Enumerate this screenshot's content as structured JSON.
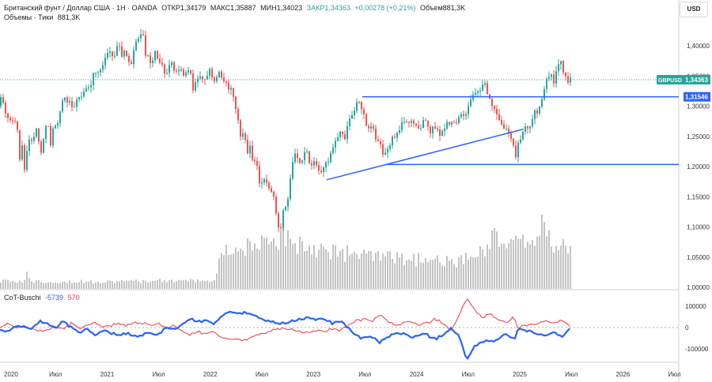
{
  "header": {
    "symbol_line": [
      "Британский фунт / Доллар США · 1Н · OANDA",
      "ОТКР1,34179",
      "МАКС1,35887",
      "МИН1,34023",
      "ЗАКР1,34363",
      "+0,00278 (+0,21%)",
      "Объем881,3K"
    ],
    "volume_line": [
      "Объемы · Тики",
      "881,3K"
    ],
    "currency_button": "USD"
  },
  "indicator": {
    "title": "CoT-Buschi",
    "values": [
      "-5739",
      "570"
    ]
  },
  "price_badges": {
    "current": "1,34363",
    "current_label": "GBPUSD",
    "level": "1,31546"
  },
  "colors": {
    "up": "#26a69a",
    "down": "#ef5350",
    "volume": "#c3c3c3",
    "lines": "#2962ff",
    "cot_red": "#f23645",
    "cot_blue": "#2962ff"
  },
  "chart_data": {
    "type": "candlestick",
    "price_axis": {
      "min": 1.0,
      "max": 1.43,
      "ticks": [
        "1,40000",
        "1,35000",
        "1,30000",
        "1,25000",
        "1,20000",
        "1,15000",
        "1,10000",
        "1,05000",
        "1,00000"
      ]
    },
    "cot_axis": {
      "ticks": [
        "100000",
        "0",
        "-100000"
      ]
    },
    "time_axis": [
      "2020",
      "Июл",
      "2021",
      "Июл",
      "2022",
      "Июл",
      "2023",
      "Июл",
      "2024",
      "Июл",
      "2025",
      "Июл",
      "2026",
      "Июл"
    ],
    "price_path": [
      [
        0,
        1.3
      ],
      [
        3,
        1.32
      ],
      [
        7,
        1.3
      ],
      [
        10,
        1.28
      ],
      [
        14,
        1.28
      ],
      [
        17,
        1.28
      ],
      [
        20,
        1.27
      ],
      [
        23,
        1.28
      ],
      [
        26,
        1.22
      ],
      [
        28,
        1.21
      ],
      [
        30,
        1.24
      ],
      [
        31,
        1.15
      ],
      [
        33,
        1.19
      ],
      [
        35,
        1.22
      ],
      [
        38,
        1.24
      ],
      [
        42,
        1.24
      ],
      [
        45,
        1.25
      ],
      [
        48,
        1.26
      ],
      [
        52,
        1.24
      ],
      [
        55,
        1.22
      ],
      [
        58,
        1.26
      ],
      [
        62,
        1.28
      ],
      [
        66,
        1.24
      ],
      [
        70,
        1.27
      ],
      [
        74,
        1.27
      ],
      [
        78,
        1.29
      ],
      [
        82,
        1.32
      ],
      [
        86,
        1.31
      ],
      [
        90,
        1.31
      ],
      [
        94,
        1.29
      ],
      [
        97,
        1.3
      ],
      [
        100,
        1.31
      ],
      [
        104,
        1.32
      ],
      [
        108,
        1.32
      ],
      [
        112,
        1.33
      ],
      [
        116,
        1.33
      ],
      [
        120,
        1.35
      ],
      [
        124,
        1.36
      ],
      [
        128,
        1.36
      ],
      [
        132,
        1.37
      ],
      [
        136,
        1.38
      ],
      [
        140,
        1.39
      ],
      [
        144,
        1.38
      ],
      [
        148,
        1.39
      ],
      [
        152,
        1.4
      ],
      [
        156,
        1.38
      ],
      [
        160,
        1.39
      ],
      [
        164,
        1.38
      ],
      [
        168,
        1.37
      ],
      [
        172,
        1.4
      ],
      [
        176,
        1.41
      ],
      [
        180,
        1.42
      ],
      [
        184,
        1.41
      ],
      [
        186,
        1.38
      ],
      [
        190,
        1.38
      ],
      [
        194,
        1.37
      ],
      [
        198,
        1.39
      ],
      [
        202,
        1.38
      ],
      [
        206,
        1.37
      ],
      [
        210,
        1.35
      ],
      [
        214,
        1.36
      ],
      [
        218,
        1.37
      ],
      [
        222,
        1.36
      ],
      [
        226,
        1.36
      ],
      [
        230,
        1.36
      ],
      [
        234,
        1.35
      ],
      [
        238,
        1.36
      ],
      [
        242,
        1.36
      ],
      [
        246,
        1.33
      ],
      [
        250,
        1.34
      ],
      [
        254,
        1.35
      ],
      [
        258,
        1.34
      ],
      [
        262,
        1.35
      ],
      [
        266,
        1.36
      ],
      [
        270,
        1.35
      ],
      [
        274,
        1.34
      ],
      [
        278,
        1.36
      ],
      [
        282,
        1.35
      ],
      [
        286,
        1.34
      ],
      [
        290,
        1.33
      ],
      [
        294,
        1.33
      ],
      [
        298,
        1.31
      ],
      [
        302,
        1.29
      ],
      [
        306,
        1.25
      ],
      [
        310,
        1.26
      ],
      [
        314,
        1.22
      ],
      [
        318,
        1.23
      ],
      [
        322,
        1.2
      ],
      [
        326,
        1.21
      ],
      [
        330,
        1.17
      ],
      [
        334,
        1.17
      ],
      [
        338,
        1.18
      ],
      [
        342,
        1.16
      ],
      [
        346,
        1.16
      ],
      [
        350,
        1.14
      ],
      [
        352,
        1.11
      ],
      [
        354,
        1.1
      ],
      [
        356,
        1.08
      ],
      [
        358,
        1.12
      ],
      [
        362,
        1.13
      ],
      [
        366,
        1.15
      ],
      [
        370,
        1.19
      ],
      [
        374,
        1.22
      ],
      [
        378,
        1.21
      ],
      [
        382,
        1.2
      ],
      [
        386,
        1.23
      ],
      [
        390,
        1.22
      ],
      [
        394,
        1.2
      ],
      [
        398,
        1.21
      ],
      [
        402,
        1.2
      ],
      [
        406,
        1.19
      ],
      [
        410,
        1.19
      ],
      [
        414,
        1.21
      ],
      [
        418,
        1.21
      ],
      [
        422,
        1.23
      ],
      [
        426,
        1.24
      ],
      [
        430,
        1.25
      ],
      [
        434,
        1.26
      ],
      [
        438,
        1.25
      ],
      [
        442,
        1.27
      ],
      [
        446,
        1.28
      ],
      [
        450,
        1.29
      ],
      [
        454,
        1.31
      ],
      [
        458,
        1.3
      ],
      [
        462,
        1.29
      ],
      [
        466,
        1.26
      ],
      [
        470,
        1.27
      ],
      [
        474,
        1.26
      ],
      [
        478,
        1.24
      ],
      [
        482,
        1.24
      ],
      [
        486,
        1.22
      ],
      [
        490,
        1.22
      ],
      [
        494,
        1.23
      ],
      [
        498,
        1.25
      ],
      [
        502,
        1.25
      ],
      [
        506,
        1.26
      ],
      [
        510,
        1.27
      ],
      [
        514,
        1.27
      ],
      [
        518,
        1.27
      ],
      [
        522,
        1.28
      ],
      [
        526,
        1.27
      ],
      [
        530,
        1.27
      ],
      [
        534,
        1.26
      ],
      [
        538,
        1.28
      ],
      [
        542,
        1.27
      ],
      [
        546,
        1.26
      ],
      [
        550,
        1.27
      ],
      [
        554,
        1.26
      ],
      [
        558,
        1.25
      ],
      [
        562,
        1.26
      ],
      [
        566,
        1.27
      ],
      [
        570,
        1.27
      ],
      [
        574,
        1.28
      ],
      [
        578,
        1.27
      ],
      [
        582,
        1.28
      ],
      [
        586,
        1.29
      ],
      [
        590,
        1.28
      ],
      [
        594,
        1.3
      ],
      [
        598,
        1.31
      ],
      [
        602,
        1.32
      ],
      [
        606,
        1.32
      ],
      [
        610,
        1.33
      ],
      [
        614,
        1.34
      ],
      [
        618,
        1.32
      ],
      [
        622,
        1.31
      ],
      [
        626,
        1.3
      ],
      [
        630,
        1.29
      ],
      [
        634,
        1.27
      ],
      [
        638,
        1.26
      ],
      [
        642,
        1.26
      ],
      [
        646,
        1.25
      ],
      [
        650,
        1.24
      ],
      [
        654,
        1.22
      ],
      [
        658,
        1.24
      ],
      [
        662,
        1.25
      ],
      [
        666,
        1.27
      ],
      [
        670,
        1.26
      ],
      [
        674,
        1.28
      ],
      [
        678,
        1.29
      ],
      [
        682,
        1.29
      ],
      [
        686,
        1.31
      ],
      [
        690,
        1.33
      ],
      [
        694,
        1.35
      ],
      [
        698,
        1.35
      ],
      [
        702,
        1.34
      ],
      [
        706,
        1.36
      ],
      [
        710,
        1.37
      ],
      [
        712,
        1.37
      ],
      [
        714,
        1.36
      ],
      [
        718,
        1.35
      ],
      [
        720,
        1.344
      ]
    ],
    "volume_path": [
      [
        0,
        0.1
      ],
      [
        30,
        0.1
      ],
      [
        33,
        0.22
      ],
      [
        40,
        0.1
      ],
      [
        100,
        0.1
      ],
      [
        160,
        0.1
      ],
      [
        200,
        0.11
      ],
      [
        250,
        0.11
      ],
      [
        272,
        0.1
      ],
      [
        275,
        0.46
      ],
      [
        300,
        0.55
      ],
      [
        350,
        0.6
      ],
      [
        358,
        0.75
      ],
      [
        362,
        0.65
      ],
      [
        400,
        0.55
      ],
      [
        450,
        0.45
      ],
      [
        500,
        0.4
      ],
      [
        550,
        0.38
      ],
      [
        580,
        0.35
      ],
      [
        610,
        0.55
      ],
      [
        628,
        0.75
      ],
      [
        640,
        0.58
      ],
      [
        670,
        0.65
      ],
      [
        680,
        0.7
      ],
      [
        684,
        1.0
      ],
      [
        688,
        0.7
      ],
      [
        700,
        0.6
      ],
      [
        720,
        0.55
      ]
    ],
    "cot_red_path": [
      [
        0,
        -5000
      ],
      [
        10,
        20000
      ],
      [
        20,
        0
      ],
      [
        30,
        5000
      ],
      [
        40,
        -5000
      ],
      [
        50,
        -15000
      ],
      [
        60,
        -10000
      ],
      [
        70,
        5000
      ],
      [
        80,
        -10000
      ],
      [
        90,
        20000
      ],
      [
        100,
        0
      ],
      [
        110,
        5000
      ],
      [
        120,
        20000
      ],
      [
        130,
        0
      ],
      [
        140,
        10000
      ],
      [
        150,
        20000
      ],
      [
        160,
        10000
      ],
      [
        170,
        25000
      ],
      [
        180,
        20000
      ],
      [
        190,
        10000
      ],
      [
        200,
        20000
      ],
      [
        210,
        -5000
      ],
      [
        220,
        10000
      ],
      [
        230,
        -15000
      ],
      [
        240,
        -35000
      ],
      [
        250,
        -20000
      ],
      [
        260,
        -30000
      ],
      [
        270,
        -15000
      ],
      [
        280,
        -50000
      ],
      [
        290,
        -60000
      ],
      [
        300,
        -55000
      ],
      [
        310,
        -60000
      ],
      [
        320,
        -45000
      ],
      [
        330,
        -30000
      ],
      [
        340,
        -20000
      ],
      [
        350,
        -5000
      ],
      [
        360,
        -5000
      ],
      [
        370,
        -10000
      ],
      [
        380,
        -20000
      ],
      [
        390,
        -25000
      ],
      [
        400,
        -15000
      ],
      [
        410,
        -20000
      ],
      [
        420,
        -5000
      ],
      [
        430,
        -15000
      ],
      [
        440,
        10000
      ],
      [
        450,
        30000
      ],
      [
        460,
        40000
      ],
      [
        470,
        30000
      ],
      [
        480,
        60000
      ],
      [
        490,
        30000
      ],
      [
        500,
        10000
      ],
      [
        510,
        20000
      ],
      [
        520,
        30000
      ],
      [
        530,
        15000
      ],
      [
        540,
        20000
      ],
      [
        550,
        40000
      ],
      [
        560,
        20000
      ],
      [
        570,
        -10000
      ],
      [
        580,
        50000
      ],
      [
        590,
        140000
      ],
      [
        600,
        80000
      ],
      [
        610,
        50000
      ],
      [
        620,
        60000
      ],
      [
        630,
        40000
      ],
      [
        640,
        20000
      ],
      [
        650,
        50000
      ],
      [
        655,
        -10000
      ],
      [
        660,
        5000
      ],
      [
        670,
        10000
      ],
      [
        680,
        20000
      ],
      [
        690,
        30000
      ],
      [
        700,
        15000
      ],
      [
        710,
        35000
      ],
      [
        715,
        20000
      ],
      [
        720,
        5000
      ]
    ],
    "cot_blue_path": [
      [
        0,
        -15000
      ],
      [
        10,
        -20000
      ],
      [
        20,
        10000
      ],
      [
        30,
        0
      ],
      [
        40,
        -5000
      ],
      [
        50,
        30000
      ],
      [
        60,
        20000
      ],
      [
        70,
        -5000
      ],
      [
        80,
        30000
      ],
      [
        90,
        0
      ],
      [
        100,
        -20000
      ],
      [
        110,
        -10000
      ],
      [
        120,
        -40000
      ],
      [
        130,
        -15000
      ],
      [
        140,
        -25000
      ],
      [
        150,
        -35000
      ],
      [
        160,
        -25000
      ],
      [
        170,
        -40000
      ],
      [
        180,
        -35000
      ],
      [
        190,
        -25000
      ],
      [
        200,
        -35000
      ],
      [
        210,
        0
      ],
      [
        220,
        -10000
      ],
      [
        230,
        15000
      ],
      [
        240,
        40000
      ],
      [
        250,
        25000
      ],
      [
        260,
        35000
      ],
      [
        270,
        20000
      ],
      [
        280,
        50000
      ],
      [
        290,
        70000
      ],
      [
        300,
        65000
      ],
      [
        310,
        70000
      ],
      [
        320,
        55000
      ],
      [
        330,
        40000
      ],
      [
        340,
        30000
      ],
      [
        350,
        20000
      ],
      [
        360,
        20000
      ],
      [
        370,
        30000
      ],
      [
        380,
        40000
      ],
      [
        390,
        45000
      ],
      [
        400,
        35000
      ],
      [
        410,
        40000
      ],
      [
        420,
        20000
      ],
      [
        430,
        30000
      ],
      [
        440,
        0
      ],
      [
        450,
        -40000
      ],
      [
        460,
        -50000
      ],
      [
        470,
        -40000
      ],
      [
        480,
        -70000
      ],
      [
        490,
        -45000
      ],
      [
        500,
        -25000
      ],
      [
        510,
        -30000
      ],
      [
        520,
        -45000
      ],
      [
        530,
        -30000
      ],
      [
        540,
        -35000
      ],
      [
        550,
        -55000
      ],
      [
        560,
        -35000
      ],
      [
        570,
        0
      ],
      [
        580,
        -40000
      ],
      [
        590,
        -150000
      ],
      [
        600,
        -90000
      ],
      [
        610,
        -60000
      ],
      [
        620,
        -70000
      ],
      [
        630,
        -50000
      ],
      [
        640,
        -30000
      ],
      [
        650,
        -60000
      ],
      [
        655,
        0
      ],
      [
        660,
        -15000
      ],
      [
        670,
        -20000
      ],
      [
        680,
        -30000
      ],
      [
        690,
        -40000
      ],
      [
        700,
        -25000
      ],
      [
        710,
        -45000
      ],
      [
        715,
        -30000
      ],
      [
        720,
        -5739
      ]
    ],
    "annotations": {
      "horizontal_lines": [
        {
          "price": 1.3155,
          "x_from": 458
        },
        {
          "price": 1.2035,
          "x_from": 488
        }
      ],
      "trend_line": {
        "from": [
          413,
          1.178
        ],
        "to": [
          662,
          1.262
        ]
      }
    }
  }
}
